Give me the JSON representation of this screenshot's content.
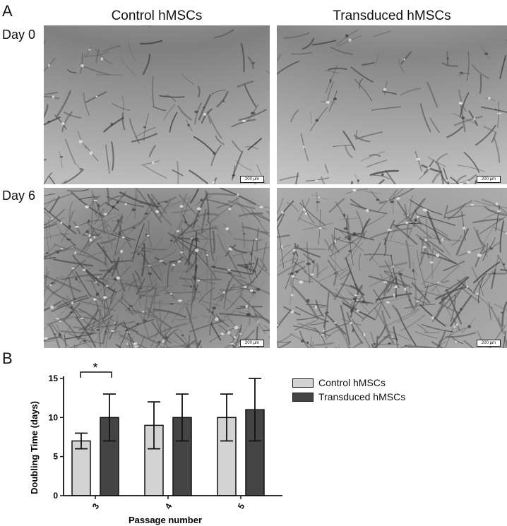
{
  "panel_a": {
    "letter": "A",
    "column_headers": [
      "Control hMSCs",
      "Transduced hMSCs"
    ],
    "row_headers": [
      "Day 0",
      "Day 6"
    ],
    "scale_bar_label": "200 µm"
  },
  "panel_b": {
    "letter": "B",
    "significance_marker": "*"
  },
  "chart_data": {
    "type": "bar",
    "categories": [
      "3",
      "4",
      "5"
    ],
    "xlabel": "Passage number",
    "ylabel": "Doubling Time (days)",
    "ylim": [
      0,
      15
    ],
    "yticks": [
      0,
      5,
      10,
      15
    ],
    "legend_position": "right",
    "series": [
      {
        "name": "Control hMSCs",
        "color": "#d3d3d3",
        "values": [
          7,
          9,
          10
        ],
        "error": [
          1,
          3,
          3
        ]
      },
      {
        "name": "Transduced hMSCs",
        "color": "#444444",
        "values": [
          10,
          10,
          11
        ],
        "error": [
          3,
          3,
          4
        ]
      }
    ]
  }
}
